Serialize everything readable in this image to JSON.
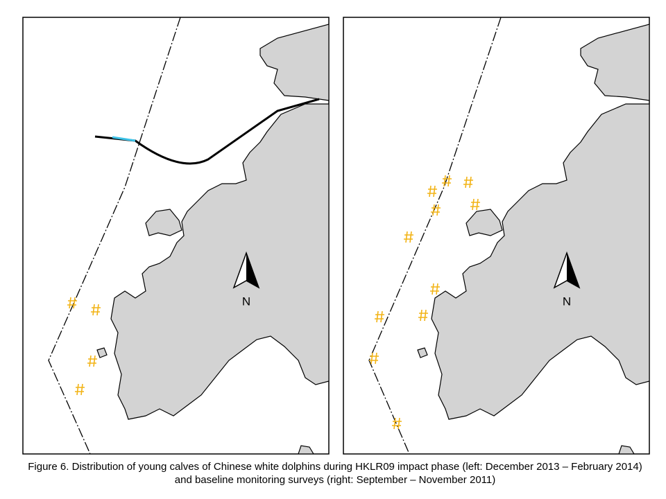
{
  "panels": [
    {
      "north_label": "N"
    },
    {
      "north_label": "N"
    }
  ],
  "caption": {
    "lines": [
      "Figure 6.  Distribution of young calves of Chinese white dolphins during HKLR09 impact phase (left: December 2013 – February 2014)",
      "and baseline monitoring surveys (right: September – November 2011)"
    ]
  }
}
